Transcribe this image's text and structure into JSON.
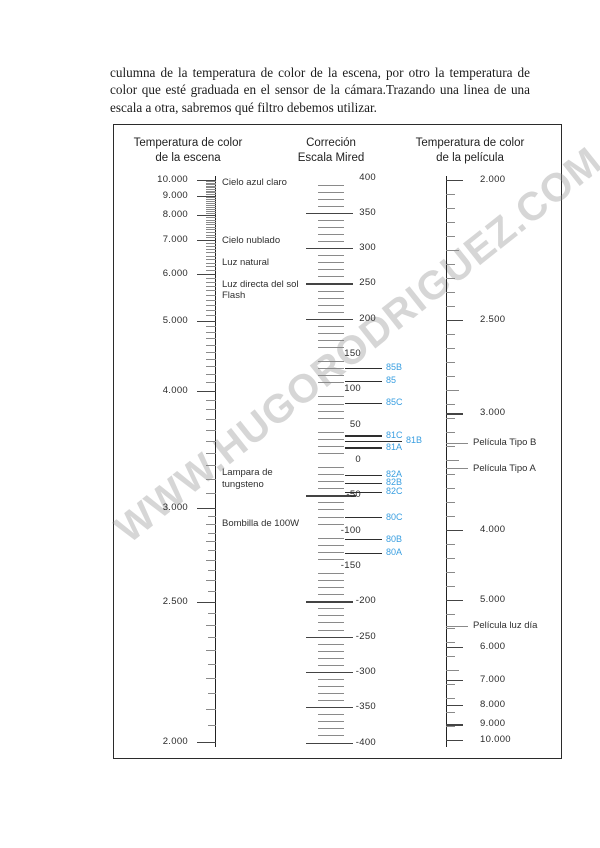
{
  "paragraph": "culumna de la temperatura de color de la escena, por otro la temperatura de color que esté graduada en el sensor de la cámara.Trazando una linea de una escala a otra, sabremos qué filtro debemos utilizar.",
  "watermark": "WWW.HUGORODRIGUEZ.COM",
  "figure": {
    "left_scale": {
      "title": [
        "Temperatura de color",
        "de la escena"
      ],
      "tick_labels": [
        {
          "text": "10.000",
          "kelvin": 10000
        },
        {
          "text": "9.000",
          "kelvin": 9000
        },
        {
          "text": "8.000",
          "kelvin": 8000
        },
        {
          "text": "7.000",
          "kelvin": 7000
        },
        {
          "text": "6.000",
          "kelvin": 6000
        },
        {
          "text": "5.000",
          "kelvin": 5000
        },
        {
          "text": "4.000",
          "kelvin": 4000
        },
        {
          "text": "3.000",
          "kelvin": 3000
        },
        {
          "text": "2.500",
          "kelvin": 2500
        },
        {
          "text": "2.000",
          "kelvin": 2000
        }
      ],
      "annotations": [
        {
          "text": "Cielo azul claro",
          "kelvin": 9800
        },
        {
          "text": "Cielo nublado",
          "kelvin": 7000
        },
        {
          "text": "Luz natural",
          "kelvin": 6300
        },
        {
          "text": "Luz directa del sol\nFlash",
          "kelvin": 5600
        },
        {
          "text": "Lampara de\ntungsteno",
          "kelvin": 3200
        },
        {
          "text": "Bombilla de 100W",
          "kelvin": 2900
        }
      ]
    },
    "mired_scale": {
      "title": [
        "Correción",
        "Escala Mired"
      ],
      "tick_labels": [
        400,
        350,
        300,
        250,
        200,
        150,
        100,
        50,
        0,
        -50,
        -100,
        -150,
        -200,
        -250,
        -300,
        -350,
        -400
      ],
      "filters": [
        {
          "text": "85B",
          "mired": 131
        },
        {
          "text": "85",
          "mired": 112
        },
        {
          "text": "85C",
          "mired": 81
        },
        {
          "text": "81C",
          "mired": 35
        },
        {
          "text": "81B",
          "mired": 27,
          "offset_right": true
        },
        {
          "text": "81A",
          "mired": 18
        },
        {
          "text": "82A",
          "mired": -21
        },
        {
          "text": "82B",
          "mired": -32
        },
        {
          "text": "82C",
          "mired": -45
        },
        {
          "text": "80C",
          "mired": -81
        },
        {
          "text": "80B",
          "mired": -112
        },
        {
          "text": "80A",
          "mired": -131
        }
      ],
      "filter_label_color": "#3a9fe1"
    },
    "right_scale": {
      "title": [
        "Temperatura de color",
        "de la película"
      ],
      "tick_labels": [
        {
          "text": "2.000",
          "kelvin": 2000
        },
        {
          "text": "2.500",
          "kelvin": 2500
        },
        {
          "text": "3.000",
          "kelvin": 3000
        },
        {
          "text": "4.000",
          "kelvin": 4000
        },
        {
          "text": "5.000",
          "kelvin": 5000
        },
        {
          "text": "6.000",
          "kelvin": 6000
        },
        {
          "text": "7.000",
          "kelvin": 7000
        },
        {
          "text": "8.000",
          "kelvin": 8000
        },
        {
          "text": "9.000",
          "kelvin": 9000
        },
        {
          "text": "10.000",
          "kelvin": 10000
        }
      ],
      "annotations": [
        {
          "text": "Película Tipo B",
          "kelvin": 3200
        },
        {
          "text": "Película Tipo A",
          "kelvin": 3400
        },
        {
          "text": "Película luz día",
          "kelvin": 5500
        }
      ]
    }
  }
}
